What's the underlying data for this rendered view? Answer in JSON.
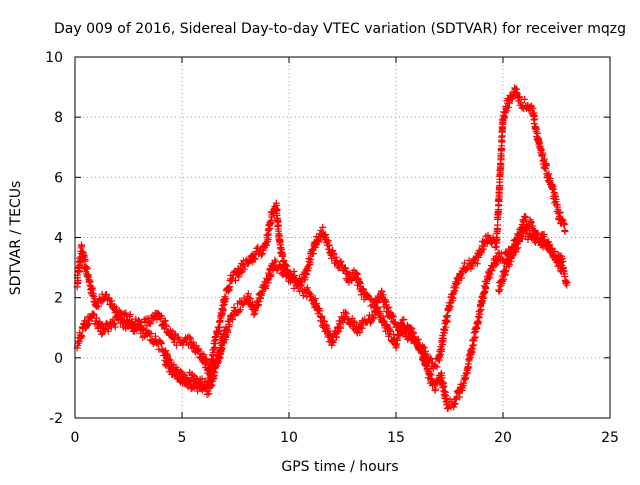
{
  "chart_data": {
    "type": "scatter",
    "title": "Day 009 of 2016, Sidereal Day-to-day VTEC variation (SDTVAR) for receiver mqzg",
    "xlabel": "GPS time / hours",
    "ylabel": "SDTVAR / TECUs",
    "xlim": [
      0,
      25
    ],
    "ylim": [
      -2,
      10
    ],
    "xticks": [
      0,
      5,
      10,
      15,
      20,
      25
    ],
    "yticks": [
      -2,
      0,
      2,
      4,
      6,
      8,
      10
    ],
    "grid": true,
    "marker": "+",
    "color": "#ff0000",
    "series": [
      {
        "name": "SDTVAR",
        "trace_upper": {
          "x": [
            0.1,
            0.3,
            0.5,
            0.8,
            1.0,
            1.3,
            1.6,
            1.9,
            2.2,
            2.5,
            2.8,
            3.1,
            3.5,
            3.9,
            4.3,
            4.7,
            5.0,
            5.3,
            5.6,
            6.0,
            6.3,
            6.5,
            6.8,
            7.0,
            7.3,
            7.6,
            7.9,
            8.2,
            8.5,
            8.8,
            9.0,
            9.2,
            9.4,
            9.6,
            9.8,
            10.1,
            10.4,
            10.7,
            11.0,
            11.3,
            11.6,
            11.9,
            12.2,
            12.5,
            12.8,
            13.1,
            13.4,
            13.7,
            14.0,
            14.3,
            14.6,
            14.9,
            15.2,
            15.5,
            15.8,
            16.1,
            16.4,
            16.7,
            17.0,
            17.3,
            17.6,
            17.9,
            18.2,
            18.5,
            18.8,
            19.1,
            19.4,
            19.7,
            20.0,
            20.3,
            20.6,
            20.8,
            21.1,
            21.4,
            21.7,
            22.0,
            22.3,
            22.6,
            22.9
          ],
          "y": [
            2.5,
            3.6,
            3.0,
            2.2,
            1.8,
            2.0,
            1.9,
            1.6,
            1.4,
            1.3,
            1.2,
            1.1,
            1.2,
            1.4,
            1.0,
            0.6,
            0.5,
            0.6,
            0.3,
            0.0,
            -0.5,
            0.4,
            1.3,
            2.0,
            2.6,
            2.8,
            3.1,
            3.2,
            3.5,
            3.6,
            4.0,
            4.8,
            5.1,
            3.6,
            3.0,
            2.8,
            2.6,
            2.7,
            3.3,
            3.9,
            4.2,
            3.6,
            3.2,
            3.0,
            2.6,
            2.8,
            2.2,
            1.9,
            1.8,
            2.1,
            1.6,
            1.2,
            1.0,
            0.8,
            0.7,
            0.4,
            0.1,
            -0.2,
            -0.1,
            1.1,
            2.0,
            2.6,
            3.0,
            3.1,
            3.3,
            3.8,
            4.0,
            3.8,
            8.0,
            8.6,
            8.9,
            8.5,
            8.4,
            8.2,
            7.0,
            6.3,
            5.6,
            4.8,
            4.2
          ]
        },
        "trace_lower": {
          "x": [
            0.1,
            0.4,
            0.7,
            1.0,
            1.3,
            1.7,
            2.1,
            2.5,
            2.9,
            3.3,
            3.7,
            4.1,
            4.5,
            4.9,
            5.2,
            5.6,
            6.0,
            6.3,
            6.6,
            6.9,
            7.2,
            7.5,
            7.8,
            8.1,
            8.4,
            8.7,
            9.0,
            9.3,
            9.6,
            9.9,
            10.2,
            10.5,
            10.8,
            11.1,
            11.4,
            11.7,
            12.0,
            12.3,
            12.6,
            12.9,
            13.2,
            13.5,
            13.8,
            14.1,
            14.4,
            14.7,
            15.0,
            15.3,
            15.6,
            15.9,
            16.2,
            16.5,
            16.8,
            17.1,
            17.4,
            17.7,
            18.0,
            18.3,
            18.6,
            18.9,
            19.2,
            19.5,
            19.8,
            20.1,
            20.4,
            20.7,
            21.0,
            21.3,
            21.6,
            21.9,
            22.2,
            22.5,
            22.8
          ],
          "y": [
            0.5,
            1.0,
            1.4,
            1.2,
            0.9,
            1.1,
            1.3,
            1.0,
            0.9,
            0.8,
            0.6,
            0.3,
            -0.3,
            -0.6,
            -0.8,
            -0.9,
            -1.0,
            -1.1,
            -0.2,
            0.5,
            1.2,
            1.6,
            1.8,
            2.0,
            1.5,
            2.2,
            2.6,
            3.1,
            3.0,
            2.8,
            2.5,
            2.3,
            2.2,
            2.0,
            1.5,
            1.0,
            0.5,
            1.0,
            1.4,
            1.2,
            0.9,
            1.2,
            1.3,
            1.6,
            1.2,
            0.8,
            0.5,
            1.2,
            1.0,
            0.6,
            0.2,
            -0.5,
            -1.0,
            -0.6,
            -1.6,
            -1.5,
            -1.1,
            -0.6,
            0.5,
            1.5,
            2.5,
            3.0,
            3.4,
            3.3,
            3.6,
            4.0,
            4.6,
            4.4,
            4.0,
            3.8,
            3.6,
            3.4,
            3.2
          ]
        },
        "trace_loop": {
          "x": [
            4.2,
            4.6,
            5.0,
            5.4,
            5.8,
            6.2,
            6.5,
            6.8,
            7.0
          ],
          "y": [
            -0.1,
            -0.5,
            -0.7,
            -0.6,
            -0.9,
            -0.8,
            -0.4,
            0.2,
            0.9
          ]
        },
        "trace_late": {
          "x": [
            19.8,
            20.1,
            20.4,
            20.7,
            21.0,
            21.3,
            21.6,
            21.9,
            22.2,
            22.5,
            22.8,
            23.0
          ],
          "y": [
            2.3,
            2.9,
            3.4,
            3.8,
            4.2,
            4.0,
            3.9,
            4.0,
            3.6,
            3.3,
            2.9,
            2.5
          ]
        }
      }
    ]
  }
}
